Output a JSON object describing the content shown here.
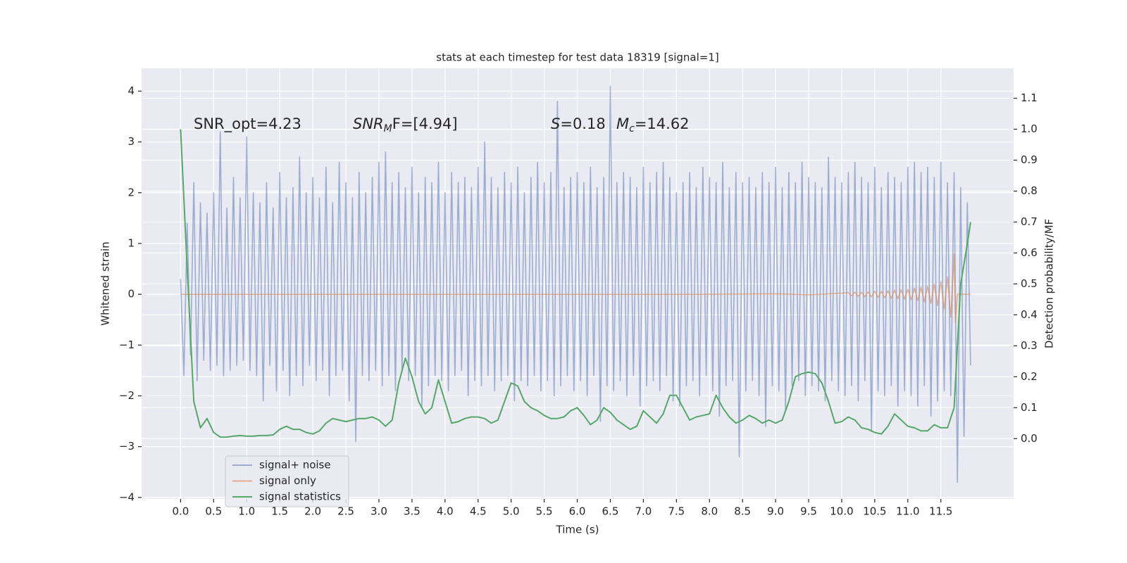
{
  "chart_data": {
    "type": "line",
    "title": "stats at each timestep for test data 18319 [signal=1]",
    "xlabel": "Time (s)",
    "ylabel": "Whitened strain",
    "y2label": "Detection probability/MF",
    "xlim": [
      -0.59,
      12.6
    ],
    "ylim": [
      -4.03,
      4.45
    ],
    "y2lim": [
      -0.195,
      1.197
    ],
    "xticks": [
      {
        "value": 0,
        "label": "0.0"
      },
      0.5,
      {
        "value": 1,
        "label": "1.0"
      },
      1.5,
      {
        "value": 2,
        "label": "2.0"
      },
      2.5,
      {
        "value": 3,
        "label": "3.0"
      },
      3.5,
      {
        "value": 4,
        "label": "4.0"
      },
      4.5,
      {
        "value": 5,
        "label": "5.0"
      },
      5.5,
      {
        "value": 6,
        "label": "6.0"
      },
      6.5,
      {
        "value": 7,
        "label": "7.0"
      },
      7.5,
      {
        "value": 8,
        "label": "8.0"
      },
      8.5,
      {
        "value": 9,
        "label": "9.0"
      },
      9.5,
      {
        "value": 10,
        "label": "10.0"
      },
      10.5,
      {
        "value": 11,
        "label": "11.0"
      },
      11.5
    ],
    "yticks": [
      {
        "value": -4,
        "label": "−4"
      },
      {
        "value": -3,
        "label": "−3"
      },
      {
        "value": -2,
        "label": "−2"
      },
      {
        "value": -1,
        "label": "−1"
      },
      0,
      1,
      2,
      3,
      4
    ],
    "y2ticks": [
      {
        "value": 0,
        "label": "0.0"
      },
      0.1,
      0.2,
      0.3,
      0.4,
      0.5,
      0.6,
      0.7,
      0.8,
      0.9,
      {
        "value": 1,
        "label": "1.0"
      },
      1.1
    ],
    "grid": true,
    "legend": "lower left",
    "annotations": [
      {
        "text": "SNR_opt=4.23"
      },
      {
        "base": "SNR",
        "sub": "M",
        "after": "F=[4.94]"
      },
      {
        "base": "S",
        "after": "=0.18"
      },
      {
        "base": "M",
        "sub": "c",
        "after": "=14.62"
      }
    ],
    "series": [
      {
        "name": "signal+ noise",
        "color": "#4c72b0",
        "opacity": 0.5,
        "x": [
          0,
          0.05,
          0.1,
          0.15,
          0.2,
          0.25,
          0.3,
          0.35,
          0.4,
          0.45,
          0.5,
          0.55,
          0.6,
          0.65,
          0.7,
          0.75,
          0.8,
          0.85,
          0.9,
          0.95,
          1,
          1.05,
          1.1,
          1.15,
          1.2,
          1.25,
          1.3,
          1.35,
          1.4,
          1.45,
          1.5,
          1.55,
          1.6,
          1.65,
          1.7,
          1.75,
          1.8,
          1.85,
          1.9,
          1.95,
          2,
          2.05,
          2.1,
          2.15,
          2.2,
          2.25,
          2.3,
          2.35,
          2.4,
          2.45,
          2.5,
          2.55,
          2.6,
          2.65,
          2.7,
          2.75,
          2.8,
          2.85,
          2.9,
          2.95,
          3,
          3.05,
          3.1,
          3.15,
          3.2,
          3.25,
          3.3,
          3.35,
          3.4,
          3.45,
          3.5,
          3.55,
          3.6,
          3.65,
          3.7,
          3.75,
          3.8,
          3.85,
          3.9,
          3.95,
          4,
          4.05,
          4.1,
          4.15,
          4.2,
          4.25,
          4.3,
          4.35,
          4.4,
          4.45,
          4.5,
          4.55,
          4.6,
          4.65,
          4.7,
          4.75,
          4.8,
          4.85,
          4.9,
          4.95,
          5,
          5.05,
          5.1,
          5.15,
          5.2,
          5.25,
          5.3,
          5.35,
          5.4,
          5.45,
          5.5,
          5.55,
          5.6,
          5.65,
          5.7,
          5.75,
          5.8,
          5.85,
          5.9,
          5.95,
          6,
          6.05,
          6.1,
          6.15,
          6.2,
          6.25,
          6.3,
          6.35,
          6.4,
          6.45,
          6.5,
          6.55,
          6.6,
          6.65,
          6.7,
          6.75,
          6.8,
          6.85,
          6.9,
          6.95,
          7,
          7.05,
          7.1,
          7.15,
          7.2,
          7.25,
          7.3,
          7.35,
          7.4,
          7.45,
          7.5,
          7.55,
          7.6,
          7.65,
          7.7,
          7.75,
          7.8,
          7.85,
          7.9,
          7.95,
          8,
          8.05,
          8.1,
          8.15,
          8.2,
          8.25,
          8.3,
          8.35,
          8.4,
          8.45,
          8.5,
          8.55,
          8.6,
          8.65,
          8.7,
          8.75,
          8.8,
          8.85,
          8.9,
          8.95,
          9,
          9.05,
          9.1,
          9.15,
          9.2,
          9.25,
          9.3,
          9.35,
          9.4,
          9.45,
          9.5,
          9.55,
          9.6,
          9.65,
          9.7,
          9.75,
          9.8,
          9.85,
          9.9,
          9.95,
          10,
          10.05,
          10.1,
          10.15,
          10.2,
          10.25,
          10.3,
          10.35,
          10.4,
          10.45,
          10.5,
          10.55,
          10.6,
          10.65,
          10.7,
          10.75,
          10.8,
          10.85,
          10.9,
          10.95,
          11,
          11.05,
          11.1,
          11.15,
          11.2,
          11.25,
          11.3,
          11.35,
          11.4,
          11.45,
          11.5,
          11.55,
          11.6,
          11.65,
          11.7,
          11.75,
          11.8,
          11.85,
          11.9,
          11.95
        ],
        "values": [
          0.3,
          -1.6,
          1.4,
          -1.2,
          2.2,
          -1.7,
          1.8,
          -1.3,
          1.6,
          -1.5,
          2.0,
          -1.4,
          3.2,
          -1.6,
          1.7,
          -1.5,
          2.3,
          -1.4,
          1.9,
          -1.3,
          3.1,
          -1.5,
          2.0,
          -1.6,
          1.8,
          -2.1,
          2.2,
          -1.4,
          1.7,
          -1.9,
          2.4,
          -1.5,
          1.9,
          -2.0,
          2.1,
          -1.6,
          2.7,
          -1.8,
          2.0,
          -1.4,
          2.3,
          -1.7,
          1.9,
          -1.5,
          2.5,
          -2.0,
          1.8,
          -1.6,
          2.6,
          -1.5,
          2.2,
          -2.1,
          1.9,
          -2.9,
          2.4,
          -1.6,
          2.0,
          -1.7,
          2.3,
          -1.5,
          2.6,
          -1.8,
          2.8,
          -1.6,
          2.2,
          -1.9,
          2.4,
          -1.5,
          2.1,
          -1.7,
          2.5,
          -1.6,
          2.0,
          -2.2,
          2.3,
          -1.8,
          2.2,
          -1.6,
          2.6,
          -1.7,
          2.0,
          -1.9,
          2.4,
          -1.6,
          2.2,
          -1.5,
          2.3,
          -2.0,
          2.1,
          -1.7,
          2.5,
          -1.8,
          3.0,
          -1.6,
          2.3,
          -1.9,
          2.1,
          -1.7,
          2.4,
          -1.6,
          2.2,
          -2.1,
          2.5,
          -1.7,
          2.0,
          -1.8,
          2.3,
          -1.6,
          2.6,
          -1.9,
          2.2,
          -1.7,
          2.4,
          -2.0,
          3.8,
          -1.8,
          2.1,
          -1.6,
          2.3,
          -1.9,
          2.4,
          -1.7,
          2.2,
          -2.0,
          2.5,
          -1.6,
          2.1,
          -2.5,
          2.3,
          -1.8,
          4.1,
          -1.9,
          2.2,
          -1.7,
          2.4,
          -2.0,
          2.3,
          -1.6,
          2.1,
          -2.2,
          2.5,
          -1.8,
          2.2,
          -1.7,
          2.4,
          -1.9,
          2.6,
          -1.6,
          2.3,
          -2.1,
          2.0,
          -2.2,
          2.2,
          -1.8,
          2.4,
          -1.7,
          2.1,
          -2.0,
          2.5,
          -1.6,
          2.3,
          -1.9,
          2.2,
          -2.4,
          2.6,
          -1.8,
          2.1,
          -1.7,
          2.4,
          -3.2,
          2.2,
          -1.9,
          2.3,
          -1.7,
          2.1,
          -2.0,
          2.4,
          -2.6,
          2.2,
          -1.8,
          2.5,
          -1.9,
          2.1,
          -2.3,
          2.4,
          -1.8,
          2.2,
          -1.7,
          2.6,
          -2.0,
          2.3,
          -1.8,
          2.2,
          -1.9,
          2.1,
          -2.1,
          2.7,
          -1.7,
          2.3,
          -1.9,
          2.2,
          -2.0,
          2.4,
          -1.8,
          2.6,
          -2.1,
          2.3,
          -1.7,
          2.2,
          -2.7,
          2.5,
          -1.9,
          2.1,
          -2.0,
          2.4,
          -1.8,
          2.3,
          -2.2,
          2.2,
          -1.9,
          2.5,
          -2.0,
          2.6,
          -2.2,
          2.4,
          -1.8,
          2.5,
          -2.4,
          2.3,
          -2.1,
          2.6,
          -1.9,
          2.2,
          -2.0,
          2.4,
          -3.7,
          2.1,
          -2.8,
          1.8,
          -1.4
        ]
      },
      {
        "name": "signal only",
        "color": "#dd8452",
        "opacity": 0.6,
        "x": [
          0,
          2,
          4,
          6,
          8,
          9,
          9.5,
          10,
          10.1,
          10.15,
          10.2,
          10.25,
          10.3,
          10.35,
          10.4,
          10.45,
          10.5,
          10.55,
          10.6,
          10.65,
          10.7,
          10.75,
          10.8,
          10.85,
          10.9,
          10.95,
          11,
          11.05,
          11.1,
          11.15,
          11.2,
          11.25,
          11.3,
          11.35,
          11.4,
          11.45,
          11.5,
          11.55,
          11.6,
          11.65,
          11.7,
          11.72,
          11.75,
          11.95
        ],
        "values": [
          0,
          0,
          0,
          0,
          0,
          0.01,
          -0.01,
          0.02,
          0.03,
          -0.03,
          0.04,
          -0.04,
          0.04,
          -0.05,
          0.05,
          -0.05,
          0.06,
          -0.06,
          0.06,
          -0.07,
          0.07,
          -0.08,
          0.08,
          -0.09,
          0.09,
          -0.1,
          0.1,
          -0.11,
          0.12,
          -0.13,
          0.14,
          -0.15,
          0.16,
          -0.18,
          0.2,
          -0.22,
          0.25,
          -0.29,
          0.34,
          -0.45,
          0.8,
          -0.55,
          0,
          0
        ]
      },
      {
        "name": "signal statistics",
        "color": "#55a868",
        "opacity": 1,
        "axis": "y2",
        "x": [
          0,
          0.1,
          0.2,
          0.3,
          0.4,
          0.5,
          0.6,
          0.7,
          0.8,
          0.9,
          1,
          1.1,
          1.2,
          1.3,
          1.4,
          1.5,
          1.6,
          1.7,
          1.8,
          1.9,
          2,
          2.1,
          2.2,
          2.3,
          2.4,
          2.5,
          2.6,
          2.7,
          2.8,
          2.9,
          3,
          3.1,
          3.2,
          3.3,
          3.4,
          3.5,
          3.6,
          3.7,
          3.8,
          3.9,
          4,
          4.1,
          4.2,
          4.3,
          4.4,
          4.5,
          4.6,
          4.7,
          4.8,
          4.9,
          5,
          5.1,
          5.2,
          5.3,
          5.4,
          5.5,
          5.6,
          5.7,
          5.8,
          5.9,
          6,
          6.1,
          6.2,
          6.3,
          6.4,
          6.5,
          6.6,
          6.7,
          6.8,
          6.9,
          7,
          7.1,
          7.2,
          7.3,
          7.4,
          7.5,
          7.6,
          7.7,
          7.8,
          7.9,
          8,
          8.1,
          8.2,
          8.3,
          8.4,
          8.5,
          8.6,
          8.7,
          8.8,
          8.9,
          9,
          9.1,
          9.2,
          9.3,
          9.4,
          9.5,
          9.6,
          9.7,
          9.8,
          9.9,
          10,
          10.1,
          10.2,
          10.3,
          10.4,
          10.5,
          10.6,
          10.7,
          10.8,
          10.9,
          11,
          11.1,
          11.2,
          11.3,
          11.4,
          11.5,
          11.6,
          11.7,
          11.8,
          11.9,
          11.95
        ],
        "values": [
          1.0,
          0.55,
          0.12,
          0.035,
          0.065,
          0.02,
          0.005,
          0.005,
          0.008,
          0.01,
          0.008,
          0.008,
          0.01,
          0.01,
          0.012,
          0.03,
          0.04,
          0.03,
          0.03,
          0.02,
          0.015,
          0.025,
          0.05,
          0.065,
          0.06,
          0.055,
          0.06,
          0.065,
          0.065,
          0.07,
          0.06,
          0.04,
          0.06,
          0.18,
          0.26,
          0.2,
          0.12,
          0.08,
          0.1,
          0.19,
          0.12,
          0.05,
          0.055,
          0.065,
          0.07,
          0.07,
          0.065,
          0.05,
          0.06,
          0.12,
          0.18,
          0.17,
          0.12,
          0.1,
          0.09,
          0.075,
          0.065,
          0.065,
          0.07,
          0.09,
          0.1,
          0.075,
          0.045,
          0.06,
          0.1,
          0.085,
          0.06,
          0.045,
          0.03,
          0.04,
          0.09,
          0.07,
          0.05,
          0.08,
          0.14,
          0.14,
          0.1,
          0.06,
          0.07,
          0.075,
          0.08,
          0.14,
          0.1,
          0.07,
          0.05,
          0.06,
          0.075,
          0.065,
          0.05,
          0.06,
          0.05,
          0.06,
          0.12,
          0.2,
          0.21,
          0.215,
          0.21,
          0.18,
          0.12,
          0.05,
          0.055,
          0.07,
          0.06,
          0.035,
          0.03,
          0.02,
          0.015,
          0.04,
          0.08,
          0.06,
          0.04,
          0.035,
          0.025,
          0.025,
          0.045,
          0.035,
          0.035,
          0.1,
          0.5,
          0.63,
          0.7
        ]
      }
    ]
  }
}
